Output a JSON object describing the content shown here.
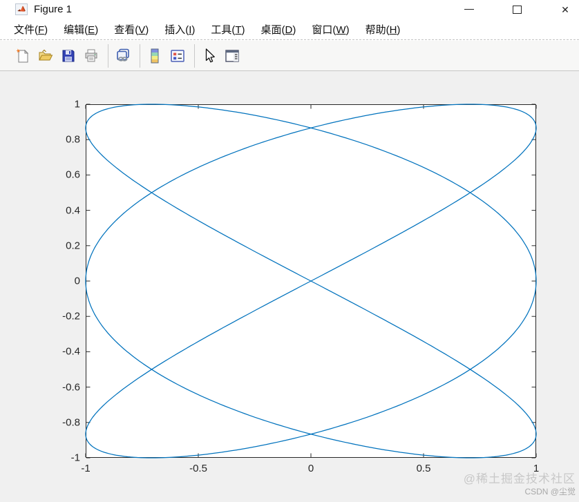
{
  "window": {
    "title": "Figure 1",
    "controls": [
      {
        "name": "minimize",
        "glyph": "—"
      },
      {
        "name": "maximize",
        "glyph": "□"
      },
      {
        "name": "close",
        "glyph": "✕"
      }
    ]
  },
  "menu": {
    "items": [
      "文件(F)",
      "编辑(E)",
      "查看(V)",
      "插入(I)",
      "工具(T)",
      "桌面(D)",
      "窗口(W)",
      "帮助(H)"
    ]
  },
  "toolbar": {
    "buttons": [
      {
        "name": "new-figure",
        "icon": "new-document-icon"
      },
      {
        "name": "open-file",
        "icon": "open-folder-icon"
      },
      {
        "name": "save-figure",
        "icon": "floppy-disk-icon"
      },
      {
        "name": "print-figure",
        "icon": "printer-icon"
      },
      {
        "name": "link-plot",
        "icon": "chain-link-icon"
      },
      {
        "name": "insert-colorbar",
        "icon": "colorbar-icon"
      },
      {
        "name": "insert-legend",
        "icon": "legend-icon"
      },
      {
        "name": "edit-plot",
        "icon": "cursor-arrow-icon"
      },
      {
        "name": "property-inspector",
        "icon": "panel-window-icon"
      }
    ]
  },
  "watermark": {
    "line1": "@稀土掘金技术社区",
    "line2": "CSDN @尘觉"
  },
  "chart_data": {
    "type": "line",
    "title": "",
    "xlabel": "",
    "ylabel": "",
    "xlim": [
      -1,
      1
    ],
    "ylim": [
      -1,
      1
    ],
    "xticks": [
      -1,
      -0.5,
      0,
      0.5,
      1
    ],
    "xtick_labels": [
      "-1",
      "-0.5",
      "0",
      "0.5",
      "1"
    ],
    "yticks": [
      -1,
      -0.8,
      -0.6,
      -0.4,
      -0.2,
      0,
      0.2,
      0.4,
      0.6,
      0.8,
      1
    ],
    "ytick_labels": [
      "-1",
      "-0.8",
      "-0.6",
      "-0.4",
      "-0.2",
      "0",
      "0.2",
      "0.4",
      "0.6",
      "0.8",
      "1"
    ],
    "grid": false,
    "box": true,
    "legend_position": "none",
    "line_color": "#0072BD",
    "line_width": 1.25,
    "axes_color": "#262626",
    "plot_background": "#ffffff",
    "figure_background": "#f0f0f0",
    "series": [
      {
        "name": "lissajous-curve",
        "x_equation": "sin(3t)",
        "y_equation": "sin(2t)",
        "x_freq": 3,
        "y_freq": 2,
        "x_phase": 0,
        "y_phase": 0,
        "t_min": 0,
        "t_max": 6.28319,
        "num_points": 800
      }
    ]
  }
}
